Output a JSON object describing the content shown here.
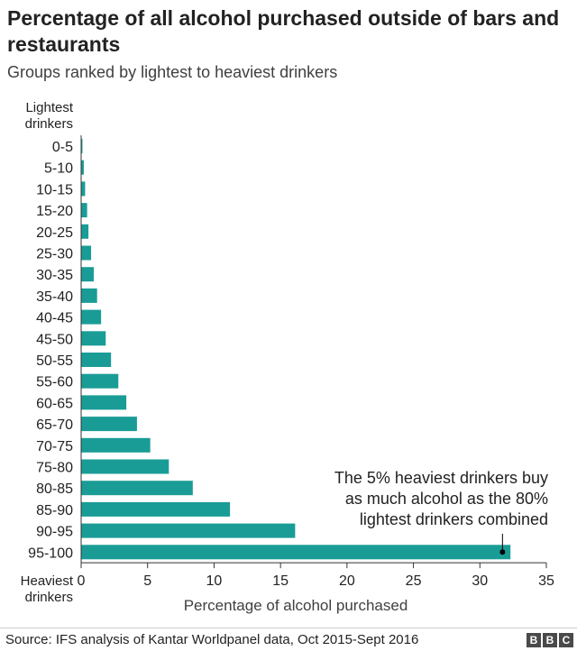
{
  "title": "Percentage of all alcohol purchased outside of bars and restaurants",
  "subtitle": "Groups ranked by lightest to heaviest drinkers",
  "source": "Source: IFS analysis of Kantar Worldpanel data, Oct 2015-Sept 2016",
  "logo": [
    "B",
    "B",
    "C"
  ],
  "colors": {
    "bar": "#1a9c96",
    "text": "#222222",
    "axis": "#333333"
  },
  "chart_data": {
    "type": "bar",
    "orientation": "horizontal",
    "categories": [
      "0-5",
      "5-10",
      "10-15",
      "15-20",
      "20-25",
      "25-30",
      "30-35",
      "35-40",
      "40-45",
      "45-50",
      "50-55",
      "55-60",
      "60-65",
      "65-70",
      "70-75",
      "75-80",
      "80-85",
      "85-90",
      "90-95",
      "95-100"
    ],
    "values": [
      0.1,
      0.2,
      0.3,
      0.45,
      0.55,
      0.75,
      0.95,
      1.2,
      1.5,
      1.85,
      2.25,
      2.8,
      3.4,
      4.2,
      5.2,
      6.6,
      8.4,
      11.2,
      16.1,
      32.3
    ],
    "xlabel": "Percentage of alcohol purchased",
    "ylabel_top": [
      "Lightest",
      "drinkers"
    ],
    "ylabel_bottom": [
      "Heaviest",
      "drinkers"
    ],
    "xlim": [
      0,
      35
    ],
    "xticks": [
      0,
      5,
      10,
      15,
      20,
      25,
      30,
      35
    ],
    "grid": false,
    "annotation": {
      "lines": [
        "The 5% heaviest drinkers buy",
        "as much alcohol as the 80%",
        "lightest drinkers combined"
      ],
      "category": "95-100",
      "x": 31.7
    }
  }
}
